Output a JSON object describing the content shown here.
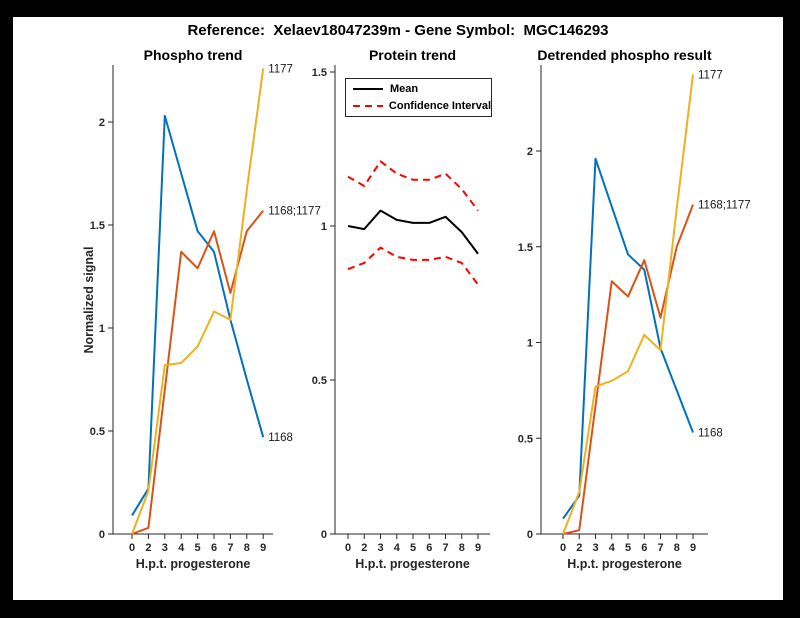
{
  "header": {
    "title": "Reference:  Xelaev18047239m - Gene Symbol:  MGC146293"
  },
  "colors": {
    "blue": "#0072BD",
    "orange": "#D95319",
    "yellow": "#EDB120",
    "red": "#FF0000",
    "black": "#000000",
    "axis": "#262626",
    "figure_bg": "#FFFFFF",
    "page_bg": "#000000"
  },
  "chart_data": [
    {
      "type": "line",
      "title": "Phospho trend",
      "xlabel": "H.p.t. progesterone",
      "ylabel": "Normalized signal",
      "categories": [
        "0",
        "2",
        "3",
        "4",
        "5",
        "6",
        "7",
        "8",
        "9"
      ],
      "ylim": [
        0,
        2.28
      ],
      "yticks": [
        0,
        0.5,
        1,
        1.5,
        2
      ],
      "grid": false,
      "legend": null,
      "series": [
        {
          "name": "1168",
          "color": "blue",
          "style": "solid",
          "end_label": "1168",
          "values": [
            0.09,
            0.22,
            2.03,
            1.75,
            1.47,
            1.37,
            1.04,
            0.75,
            0.47
          ]
        },
        {
          "name": "1168;1177",
          "color": "orange",
          "style": "solid",
          "end_label": "1168;1177",
          "values": [
            0.0,
            0.03,
            0.7,
            1.37,
            1.29,
            1.47,
            1.17,
            1.47,
            1.57
          ]
        },
        {
          "name": "1177",
          "color": "yellow",
          "style": "solid",
          "end_label": "1177",
          "values": [
            0.0,
            0.21,
            0.82,
            0.83,
            0.91,
            1.08,
            1.04,
            1.67,
            2.26
          ]
        }
      ]
    },
    {
      "type": "line",
      "title": "Protein trend",
      "xlabel": "H.p.t. progesterone",
      "ylabel": "",
      "categories": [
        "0",
        "2",
        "3",
        "4",
        "5",
        "6",
        "7",
        "8",
        "9"
      ],
      "ylim": [
        0,
        1.52
      ],
      "yticks": [
        0,
        0.5,
        1,
        1.5
      ],
      "grid": false,
      "legend": {
        "position": "upper-left",
        "entries": [
          {
            "label": "Mean",
            "color": "black",
            "style": "solid"
          },
          {
            "label": "Confidence Interval",
            "color": "red",
            "style": "dashed"
          }
        ]
      },
      "series": [
        {
          "name": "Mean",
          "color": "black",
          "style": "solid",
          "values": [
            1.0,
            0.99,
            1.05,
            1.02,
            1.01,
            1.01,
            1.03,
            0.98,
            0.91
          ]
        },
        {
          "name": "Confidence Interval upper",
          "color": "red",
          "style": "dashed",
          "values": [
            1.16,
            1.13,
            1.21,
            1.17,
            1.15,
            1.15,
            1.17,
            1.12,
            1.05
          ]
        },
        {
          "name": "Confidence Interval lower",
          "color": "red",
          "style": "dashed",
          "values": [
            0.86,
            0.88,
            0.93,
            0.9,
            0.89,
            0.89,
            0.9,
            0.88,
            0.81
          ]
        }
      ]
    },
    {
      "type": "line",
      "title": "Detrended phospho result",
      "xlabel": "H.p.t. progesterone",
      "ylabel": "",
      "categories": [
        "0",
        "2",
        "3",
        "4",
        "5",
        "6",
        "7",
        "8",
        "9"
      ],
      "ylim": [
        0,
        2.45
      ],
      "yticks": [
        0,
        0.5,
        1,
        1.5,
        2
      ],
      "grid": false,
      "legend": null,
      "series": [
        {
          "name": "1168",
          "color": "blue",
          "style": "solid",
          "end_label": "1168",
          "values": [
            0.08,
            0.2,
            1.96,
            1.71,
            1.46,
            1.38,
            0.97,
            0.75,
            0.53
          ]
        },
        {
          "name": "1168;1177",
          "color": "orange",
          "style": "solid",
          "end_label": "1168;1177",
          "values": [
            0.0,
            0.02,
            0.67,
            1.32,
            1.24,
            1.43,
            1.13,
            1.5,
            1.72
          ]
        },
        {
          "name": "1177",
          "color": "yellow",
          "style": "solid",
          "end_label": "1177",
          "values": [
            0.0,
            0.22,
            0.77,
            0.8,
            0.85,
            1.04,
            0.96,
            1.7,
            2.4
          ]
        }
      ]
    }
  ]
}
